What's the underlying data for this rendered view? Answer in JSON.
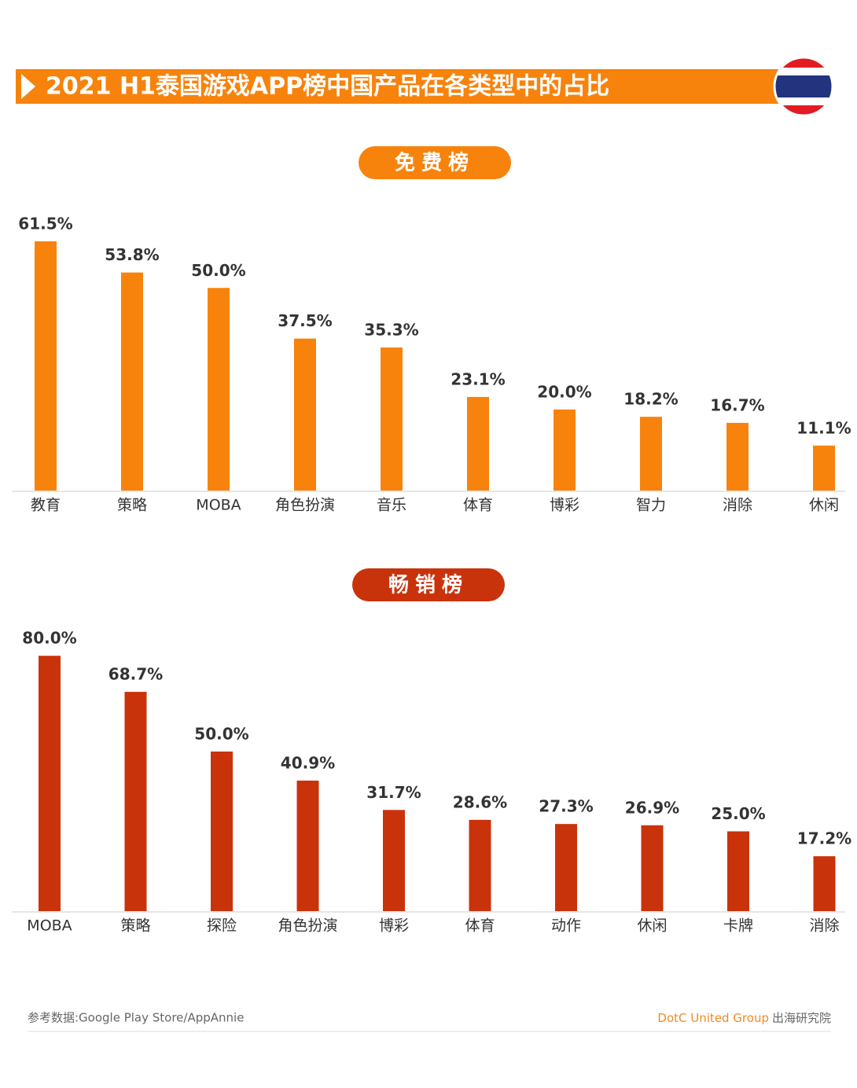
{
  "header": {
    "title": "2021 H1泰国游戏APP榜中国产品在各类型中的占比"
  },
  "chart_data": [
    {
      "type": "bar",
      "title": "免费榜",
      "color": "#f7830d",
      "categories": [
        "教育",
        "策略",
        "MOBA",
        "角色扮演",
        "音乐",
        "体育",
        "博彩",
        "智力",
        "消除",
        "休闲"
      ],
      "values": [
        61.5,
        53.8,
        50.0,
        37.5,
        35.3,
        23.1,
        20.0,
        18.2,
        16.7,
        11.1
      ],
      "value_labels": [
        "61.5%",
        "53.8%",
        "50.0%",
        "37.5%",
        "35.3%",
        "23.1%",
        "20.0%",
        "18.2%",
        "16.7%",
        "11.1%"
      ]
    },
    {
      "type": "bar",
      "title": "畅销榜",
      "color": "#c9330c",
      "categories": [
        "MOBA",
        "策略",
        "探险",
        "角色扮演",
        "博彩",
        "体育",
        "动作",
        "休闲",
        "卡牌",
        "消除"
      ],
      "values": [
        80.0,
        68.7,
        50.0,
        40.9,
        31.7,
        28.6,
        27.3,
        26.9,
        25.0,
        17.2
      ],
      "value_labels": [
        "80.0%",
        "68.7%",
        "50.0%",
        "40.9%",
        "31.7%",
        "28.6%",
        "27.3%",
        "26.9%",
        "25.0%",
        "17.2%"
      ]
    }
  ],
  "footer": {
    "source": "参考数据:Google Play Store/AppAnnie",
    "brand": "DotC United Group",
    "brand_suffix": "出海研究院"
  }
}
